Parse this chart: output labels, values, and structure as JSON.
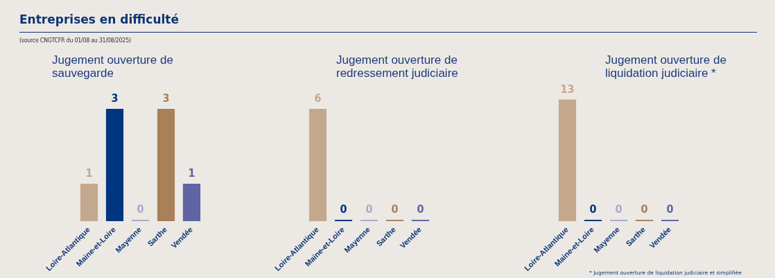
{
  "chart_data": [
    {
      "type": "bar",
      "title": "Jugement ouverture de sauvegarde",
      "annotations": [
        "Entreprises en difficulté",
        "(source CNGTCFR du 01/08 au 31/08/2025)"
      ],
      "categories": [
        "Loire-Atlantique",
        "Maine-et-Loire",
        "Mayenne",
        "Sarthe",
        "Vendée"
      ],
      "values": [
        1,
        3,
        0,
        3,
        1
      ],
      "colors": [
        "#c4a88e",
        "#003580",
        "#a9a9cc",
        "#a98057",
        "#5f64a3"
      ],
      "data_labels": true,
      "grid": false,
      "legend": false,
      "tick_labels": "x"
    },
    {
      "type": "bar",
      "title": "Jugement ouverture de redressement judiciaire",
      "categories": [
        "Loire-Atlantique",
        "Maine-et-Loire",
        "Mayenne",
        "Sarthe",
        "Vendée"
      ],
      "values": [
        6,
        0,
        0,
        0,
        0
      ],
      "colors": [
        "#c4a88e",
        "#003580",
        "#a9a9cc",
        "#a98057",
        "#5f64a3"
      ],
      "data_labels": true,
      "grid": false,
      "legend": false,
      "tick_labels": "x"
    },
    {
      "type": "bar",
      "title": "Jugement ouverture de liquidation judiciaire *",
      "annotations": [
        "* Jugement ouverture de liquidation judiciaire et simplifiée"
      ],
      "categories": [
        "Loire-Atlantique",
        "Maine-et-Loire",
        "Mayenne",
        "Sarthe",
        "Vendée"
      ],
      "values": [
        13,
        0,
        0,
        0,
        0
      ],
      "colors": [
        "#c4a88e",
        "#003580",
        "#a9a9cc",
        "#a98057",
        "#5f64a3"
      ],
      "data_labels": true,
      "grid": false,
      "legend": false,
      "tick_labels": "x"
    }
  ]
}
